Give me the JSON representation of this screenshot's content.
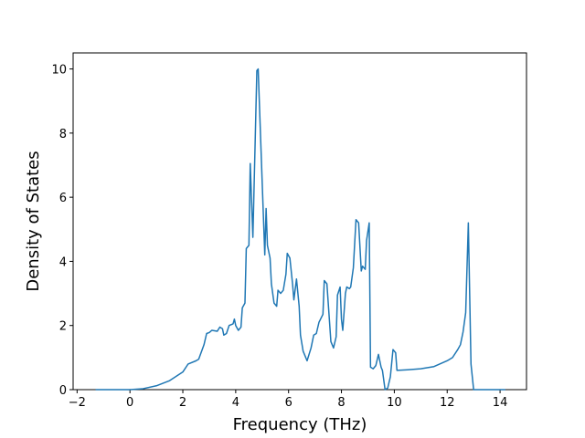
{
  "chart_data": {
    "type": "line",
    "x_label": "Frequency (THz)",
    "y_label": "Density of States",
    "color": "#1f77b4",
    "x": [
      -1.3,
      0,
      0.5,
      1,
      1.5,
      2,
      2.2,
      2.5,
      2.6,
      2.8,
      2.9,
      3.0,
      3.1,
      3.3,
      3.4,
      3.5,
      3.55,
      3.65,
      3.75,
      3.9,
      3.95,
      4.0,
      4.1,
      4.2,
      4.25,
      4.35,
      4.4,
      4.5,
      4.55,
      4.65,
      4.8,
      4.85,
      5.0,
      5.1,
      5.15,
      5.2,
      5.3,
      5.35,
      5.45,
      5.55,
      5.6,
      5.7,
      5.8,
      5.9,
      5.95,
      6.05,
      6.15,
      6.2,
      6.3,
      6.4,
      6.45,
      6.55,
      6.65,
      6.7,
      6.85,
      6.95,
      7.05,
      7.15,
      7.3,
      7.35,
      7.45,
      7.55,
      7.6,
      7.7,
      7.8,
      7.85,
      7.95,
      8.0,
      8.05,
      8.15,
      8.2,
      8.3,
      8.35,
      8.45,
      8.5,
      8.55,
      8.65,
      8.75,
      8.8,
      8.9,
      8.95,
      9.05,
      9.1,
      9.2,
      9.3,
      9.4,
      9.5,
      9.55,
      9.65,
      9.75,
      9.85,
      9.95,
      10.05,
      10.1,
      10.5,
      11,
      11.5,
      12,
      12.2,
      12.4,
      12.5,
      12.6,
      12.7,
      12.8,
      12.85,
      12.9,
      13.0,
      14.2
    ],
    "values": [
      0,
      0,
      0.03,
      0.12,
      0.28,
      0.55,
      0.8,
      0.9,
      0.95,
      1.4,
      1.75,
      1.78,
      1.85,
      1.82,
      1.95,
      1.9,
      1.7,
      1.75,
      2.0,
      2.05,
      2.2,
      2.0,
      1.85,
      1.95,
      2.55,
      2.7,
      4.4,
      4.5,
      7.05,
      4.75,
      9.95,
      10.0,
      6.5,
      4.2,
      5.65,
      4.5,
      4.1,
      3.3,
      2.7,
      2.6,
      3.1,
      3.0,
      3.1,
      3.6,
      4.25,
      4.1,
      3.3,
      2.8,
      3.45,
      2.6,
      1.7,
      1.2,
      1.0,
      0.9,
      1.3,
      1.7,
      1.75,
      2.1,
      2.35,
      3.4,
      3.3,
      2.1,
      1.5,
      1.3,
      1.65,
      2.95,
      3.2,
      2.2,
      1.85,
      3.0,
      3.2,
      3.15,
      3.2,
      3.8,
      4.55,
      5.3,
      5.2,
      3.7,
      3.85,
      3.75,
      4.65,
      5.2,
      0.7,
      0.65,
      0.75,
      1.1,
      0.7,
      0.6,
      0,
      0.05,
      0.4,
      1.25,
      1.15,
      0.6,
      0.62,
      0.65,
      0.72,
      0.9,
      1.0,
      1.25,
      1.4,
      1.8,
      2.4,
      5.2,
      3.0,
      0.8,
      0,
      0
    ],
    "xlim": [
      -2.15,
      15.0
    ],
    "ylim": [
      0,
      10.5
    ],
    "xticks": [
      {
        "value": -2,
        "label": "−2"
      },
      0,
      2,
      4,
      6,
      8,
      10,
      12,
      14
    ],
    "yticks": [
      0,
      2,
      4,
      6,
      8,
      10
    ]
  }
}
